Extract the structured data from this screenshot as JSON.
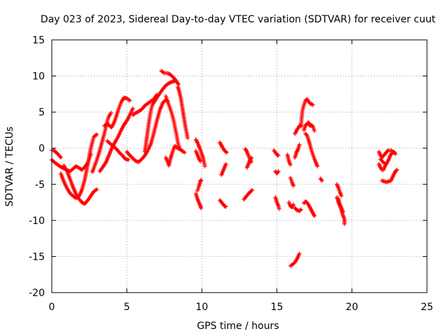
{
  "chart_data": {
    "type": "scatter",
    "title": "Day 023 of 2023, Sidereal Day-to-day VTEC variation (SDTVAR) for receiver cuut",
    "xlabel": "GPS time / hours",
    "ylabel": "SDTVAR / TECUs",
    "xlim": [
      0,
      25
    ],
    "ylim": [
      -20,
      15
    ],
    "xticks": [
      0,
      5,
      10,
      15,
      20,
      25
    ],
    "yticks": [
      -20,
      -15,
      -10,
      -5,
      0,
      5,
      10,
      15
    ],
    "grid": true,
    "marker": "+",
    "color": "#ff0000",
    "tracks": [
      [
        [
          0.0,
          -0.3
        ],
        [
          0.15,
          -0.3
        ],
        [
          0.3,
          -0.6
        ],
        [
          0.45,
          -0.9
        ],
        [
          0.6,
          -1.3
        ]
      ],
      [
        [
          0.0,
          -1.6
        ],
        [
          0.2,
          -2.0
        ],
        [
          0.4,
          -2.3
        ],
        [
          0.6,
          -2.6
        ],
        [
          0.8,
          -2.8
        ],
        [
          1.0,
          -3.0
        ],
        [
          1.2,
          -3.2
        ],
        [
          1.4,
          -2.9
        ],
        [
          1.6,
          -2.5
        ],
        [
          1.8,
          -2.7
        ],
        [
          2.0,
          -3.0
        ],
        [
          2.2,
          -2.6
        ],
        [
          2.4,
          -2.0
        ],
        [
          2.6,
          -0.8
        ]
      ],
      [
        [
          0.6,
          -3.5
        ],
        [
          0.8,
          -4.6
        ],
        [
          1.0,
          -5.5
        ],
        [
          1.2,
          -6.2
        ],
        [
          1.4,
          -6.6
        ],
        [
          1.6,
          -6.9
        ],
        [
          1.8,
          -6.7
        ],
        [
          2.0,
          -5.8
        ],
        [
          2.2,
          -4.3
        ],
        [
          2.4,
          -2.2
        ],
        [
          2.6,
          0.0
        ],
        [
          2.8,
          1.6
        ],
        [
          3.0,
          1.9
        ]
      ],
      [
        [
          0.8,
          -2.4
        ],
        [
          1.0,
          -3.1
        ],
        [
          1.2,
          -4.2
        ],
        [
          1.4,
          -5.3
        ],
        [
          1.6,
          -6.3
        ],
        [
          1.8,
          -7.0
        ],
        [
          2.0,
          -7.5
        ],
        [
          2.2,
          -7.7
        ],
        [
          2.4,
          -7.2
        ],
        [
          2.6,
          -6.6
        ],
        [
          2.8,
          -6.0
        ],
        [
          3.0,
          -5.7
        ]
      ],
      [
        [
          2.7,
          -3.3
        ],
        [
          2.9,
          -2.2
        ],
        [
          3.1,
          -1.0
        ],
        [
          3.3,
          0.5
        ],
        [
          3.5,
          2.0
        ],
        [
          3.7,
          3.8
        ],
        [
          3.8,
          4.4
        ],
        [
          3.95,
          4.9
        ]
      ],
      [
        [
          3.2,
          -3.2
        ],
        [
          3.4,
          -2.6
        ],
        [
          3.6,
          -2.0
        ],
        [
          3.8,
          -1.0
        ],
        [
          4.0,
          0.0
        ],
        [
          4.2,
          0.8
        ],
        [
          4.4,
          1.5
        ],
        [
          4.6,
          2.4
        ],
        [
          4.8,
          3.2
        ],
        [
          5.0,
          3.8
        ],
        [
          5.2,
          4.6
        ],
        [
          5.4,
          5.5
        ]
      ],
      [
        [
          3.7,
          1.0
        ],
        [
          3.9,
          0.6
        ],
        [
          4.1,
          0.3
        ],
        [
          4.3,
          -0.1
        ],
        [
          4.5,
          -0.6
        ],
        [
          4.7,
          -1.0
        ],
        [
          4.9,
          -1.5
        ],
        [
          5.1,
          -1.6
        ]
      ],
      [
        [
          3.5,
          3.1
        ],
        [
          3.7,
          3.4
        ],
        [
          3.9,
          3.0
        ],
        [
          4.0,
          2.9
        ],
        [
          4.2,
          3.8
        ],
        [
          4.4,
          5.1
        ],
        [
          4.6,
          6.3
        ],
        [
          4.8,
          7.0
        ],
        [
          5.0,
          6.9
        ],
        [
          5.2,
          6.6
        ]
      ],
      [
        [
          5.0,
          -0.5
        ],
        [
          5.2,
          -1.0
        ],
        [
          5.4,
          -1.4
        ],
        [
          5.6,
          -1.8
        ],
        [
          5.8,
          -1.9
        ],
        [
          6.0,
          -1.5
        ],
        [
          6.2,
          -1.0
        ],
        [
          6.4,
          -0.3
        ],
        [
          6.6,
          0.6
        ],
        [
          6.8,
          2.1
        ],
        [
          7.0,
          3.8
        ],
        [
          7.2,
          5.3
        ],
        [
          7.4,
          6.3
        ],
        [
          7.6,
          6.7
        ],
        [
          7.7,
          6.5
        ]
      ],
      [
        [
          5.4,
          4.6
        ],
        [
          5.6,
          4.9
        ],
        [
          5.8,
          5.1
        ],
        [
          6.0,
          5.4
        ],
        [
          6.2,
          5.9
        ],
        [
          6.4,
          6.2
        ],
        [
          6.6,
          6.5
        ],
        [
          6.8,
          6.8
        ],
        [
          7.0,
          7.4
        ]
      ],
      [
        [
          6.2,
          -0.5
        ],
        [
          6.3,
          1.0
        ],
        [
          6.4,
          2.5
        ],
        [
          6.5,
          4.0
        ],
        [
          6.6,
          5.2
        ],
        [
          6.7,
          6.0
        ],
        [
          6.85,
          6.5
        ],
        [
          7.0,
          7.0
        ],
        [
          7.2,
          7.6
        ],
        [
          7.4,
          8.2
        ],
        [
          7.6,
          8.7
        ],
        [
          7.8,
          9.0
        ],
        [
          8.0,
          9.2
        ],
        [
          8.2,
          9.3
        ]
      ],
      [
        [
          7.3,
          10.7
        ],
        [
          7.5,
          10.4
        ],
        [
          7.7,
          10.4
        ],
        [
          7.9,
          10.2
        ],
        [
          8.1,
          9.8
        ],
        [
          8.3,
          9.3
        ],
        [
          8.45,
          8.8
        ]
      ],
      [
        [
          7.6,
          7.2
        ],
        [
          7.8,
          6.0
        ],
        [
          8.0,
          4.8
        ],
        [
          8.1,
          4.0
        ],
        [
          8.2,
          3.0
        ],
        [
          8.3,
          2.0
        ],
        [
          8.4,
          0.8
        ],
        [
          8.5,
          0.0
        ],
        [
          8.7,
          -0.4
        ],
        [
          8.85,
          -0.6
        ]
      ],
      [
        [
          7.6,
          -1.3
        ],
        [
          7.7,
          -1.8
        ],
        [
          7.8,
          -2.4
        ],
        [
          7.9,
          -1.5
        ],
        [
          8.0,
          -0.8
        ],
        [
          8.1,
          -0.2
        ],
        [
          8.2,
          0.3
        ],
        [
          8.4,
          0.0
        ],
        [
          8.6,
          -0.2
        ]
      ],
      [
        [
          8.4,
          8.5
        ],
        [
          8.5,
          7.8
        ],
        [
          8.6,
          6.9
        ],
        [
          8.7,
          5.6
        ],
        [
          8.8,
          4.3
        ],
        [
          8.9,
          3.0
        ],
        [
          9.0,
          2.0
        ],
        [
          9.05,
          1.4
        ]
      ],
      [
        [
          9.6,
          1.2
        ],
        [
          9.7,
          0.8
        ],
        [
          9.8,
          0.3
        ],
        [
          9.9,
          -0.2
        ],
        [
          10.0,
          -0.8
        ],
        [
          10.1,
          -1.5
        ],
        [
          10.2,
          -2.5
        ]
      ],
      [
        [
          9.6,
          -0.4
        ],
        [
          9.7,
          -0.9
        ],
        [
          9.8,
          -1.4
        ],
        [
          9.9,
          -1.8
        ]
      ],
      [
        [
          9.6,
          -6.3
        ],
        [
          9.7,
          -7.0
        ],
        [
          9.8,
          -7.5
        ],
        [
          9.9,
          -8.0
        ],
        [
          9.95,
          -8.3
        ]
      ],
      [
        [
          9.7,
          -5.9
        ],
        [
          9.8,
          -5.3
        ],
        [
          9.9,
          -4.6
        ],
        [
          9.95,
          -4.4
        ]
      ],
      [
        [
          11.2,
          0.8
        ],
        [
          11.35,
          0.2
        ],
        [
          11.5,
          -0.3
        ],
        [
          11.65,
          -0.6
        ]
      ],
      [
        [
          11.3,
          -3.7
        ],
        [
          11.4,
          -3.2
        ],
        [
          11.5,
          -2.7
        ],
        [
          11.6,
          -2.2
        ]
      ],
      [
        [
          11.2,
          -7.2
        ],
        [
          11.35,
          -7.6
        ],
        [
          11.5,
          -8.0
        ],
        [
          11.6,
          -8.1
        ]
      ],
      [
        [
          12.9,
          -0.1
        ],
        [
          13.0,
          -0.5
        ],
        [
          13.1,
          -1.0
        ],
        [
          13.2,
          -1.6
        ],
        [
          13.3,
          -1.9
        ]
      ],
      [
        [
          13.0,
          -2.7
        ],
        [
          13.1,
          -2.2
        ],
        [
          13.2,
          -1.7
        ],
        [
          13.3,
          -1.3
        ]
      ],
      [
        [
          12.8,
          -7.1
        ],
        [
          12.95,
          -6.7
        ],
        [
          13.1,
          -6.3
        ],
        [
          13.25,
          -6.0
        ],
        [
          13.35,
          -5.8
        ]
      ],
      [
        [
          14.8,
          -0.3
        ],
        [
          14.9,
          -0.6
        ],
        [
          15.0,
          -0.9
        ],
        [
          15.1,
          -1.0
        ]
      ],
      [
        [
          14.9,
          -3.2
        ],
        [
          15.0,
          -3.5
        ],
        [
          15.1,
          -3.2
        ]
      ],
      [
        [
          14.9,
          -6.8
        ],
        [
          15.0,
          -7.5
        ],
        [
          15.1,
          -8.0
        ],
        [
          15.15,
          -8.4
        ]
      ],
      [
        [
          15.7,
          -0.9
        ],
        [
          15.8,
          -1.8
        ],
        [
          15.9,
          -2.3
        ]
      ],
      [
        [
          15.9,
          -4.1
        ],
        [
          16.0,
          -4.7
        ],
        [
          16.1,
          -5.2
        ]
      ],
      [
        [
          15.8,
          -7.5
        ],
        [
          15.9,
          -8.0
        ],
        [
          16.0,
          -8.2
        ],
        [
          16.1,
          -7.8
        ]
      ],
      [
        [
          16.2,
          -1.3
        ],
        [
          16.3,
          -0.6
        ],
        [
          16.4,
          -0.2
        ],
        [
          16.5,
          0.5
        ]
      ],
      [
        [
          16.2,
          -8.3
        ],
        [
          16.35,
          -8.6
        ],
        [
          16.5,
          -8.7
        ],
        [
          16.6,
          -8.5
        ]
      ],
      [
        [
          15.9,
          -16.3
        ],
        [
          16.05,
          -16.1
        ],
        [
          16.2,
          -15.8
        ],
        [
          16.35,
          -15.3
        ],
        [
          16.5,
          -14.6
        ]
      ],
      [
        [
          16.2,
          2.0
        ],
        [
          16.35,
          2.6
        ],
        [
          16.5,
          3.1
        ],
        [
          16.6,
          3.2
        ]
      ],
      [
        [
          16.6,
          3.0
        ],
        [
          16.65,
          4.2
        ],
        [
          16.7,
          5.2
        ],
        [
          16.8,
          6.0
        ],
        [
          16.9,
          6.6
        ],
        [
          17.0,
          6.8
        ],
        [
          17.1,
          6.5
        ],
        [
          17.2,
          6.2
        ],
        [
          17.4,
          6.0
        ]
      ],
      [
        [
          16.8,
          2.5
        ],
        [
          16.9,
          3.2
        ],
        [
          17.0,
          3.3
        ],
        [
          17.1,
          3.6
        ],
        [
          17.2,
          3.1
        ],
        [
          17.3,
          3.2
        ],
        [
          17.4,
          3.0
        ],
        [
          17.5,
          2.4
        ]
      ],
      [
        [
          16.9,
          2.0
        ],
        [
          17.0,
          1.8
        ],
        [
          17.1,
          1.2
        ],
        [
          17.2,
          0.5
        ],
        [
          17.3,
          -0.3
        ],
        [
          17.4,
          -0.9
        ],
        [
          17.5,
          -1.5
        ],
        [
          17.6,
          -2.0
        ],
        [
          17.7,
          -2.5
        ]
      ],
      [
        [
          16.8,
          -7.6
        ],
        [
          16.9,
          -7.4
        ],
        [
          17.0,
          -7.5
        ],
        [
          17.1,
          -7.8
        ],
        [
          17.2,
          -8.2
        ],
        [
          17.3,
          -8.6
        ],
        [
          17.4,
          -9.0
        ],
        [
          17.5,
          -9.4
        ]
      ],
      [
        [
          17.9,
          -4.2
        ],
        [
          18.0,
          -4.5
        ]
      ],
      [
        [
          19.0,
          -5.0
        ],
        [
          19.1,
          -5.5
        ],
        [
          19.2,
          -6.1
        ],
        [
          19.3,
          -6.6
        ]
      ],
      [
        [
          19.0,
          -6.8
        ],
        [
          19.1,
          -7.5
        ],
        [
          19.2,
          -8.0
        ],
        [
          19.3,
          -8.6
        ],
        [
          19.4,
          -9.3
        ],
        [
          19.5,
          -9.8
        ],
        [
          19.5,
          -10.5
        ]
      ],
      [
        [
          19.1,
          -7.0
        ],
        [
          19.2,
          -7.8
        ],
        [
          19.3,
          -8.3
        ],
        [
          19.4,
          -8.8
        ]
      ],
      [
        [
          21.8,
          -0.5
        ],
        [
          21.9,
          -1.0
        ],
        [
          22.0,
          -1.3
        ],
        [
          22.2,
          -0.8
        ],
        [
          22.4,
          -0.3
        ],
        [
          22.6,
          -0.3
        ],
        [
          22.8,
          -0.6
        ]
      ],
      [
        [
          21.8,
          -2.2
        ],
        [
          21.9,
          -2.7
        ],
        [
          22.0,
          -3.0
        ],
        [
          22.1,
          -3.0
        ],
        [
          22.2,
          -2.5
        ],
        [
          22.4,
          -1.8
        ],
        [
          22.6,
          -0.8
        ],
        [
          22.8,
          -0.5
        ],
        [
          22.9,
          -0.8
        ]
      ],
      [
        [
          21.9,
          -1.5
        ],
        [
          22.05,
          -1.9
        ],
        [
          22.2,
          -2.1
        ]
      ],
      [
        [
          22.0,
          -4.5
        ],
        [
          22.15,
          -4.6
        ],
        [
          22.3,
          -4.7
        ],
        [
          22.45,
          -4.6
        ],
        [
          22.6,
          -4.5
        ],
        [
          22.75,
          -3.8
        ],
        [
          22.9,
          -3.2
        ],
        [
          23.0,
          -3.0
        ]
      ]
    ]
  }
}
